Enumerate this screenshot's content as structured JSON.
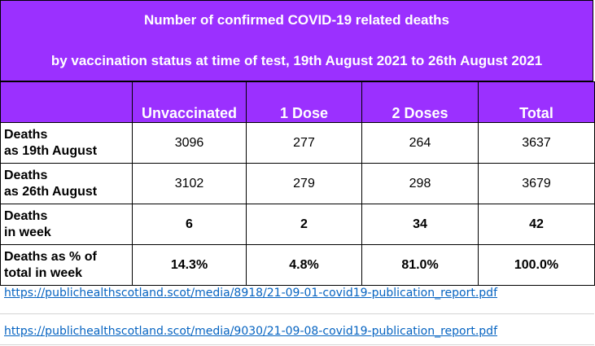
{
  "title": {
    "line1": "Number of confirmed COVID-19 related deaths",
    "line2": "by vaccination status at time of test, 19th August 2021 to 26th August 2021"
  },
  "table": {
    "headers": [
      "",
      "Unvaccinated",
      "1 Dose",
      "2 Doses",
      "Total"
    ],
    "rows": [
      {
        "label1": "Deaths",
        "label2": "as 19th August",
        "values": [
          "3096",
          "277",
          "264",
          "3637"
        ]
      },
      {
        "label1": "Deaths",
        "label2": "as 26th August",
        "values": [
          "3102",
          "279",
          "298",
          "3679"
        ]
      },
      {
        "label1": "Deaths",
        "label2": "in week",
        "values": [
          "6",
          "2",
          "34",
          "42"
        ]
      },
      {
        "label1": "Deaths as % of",
        "label2": "total in week",
        "values": [
          "14.3%",
          "4.8%",
          "81.0%",
          "100.0%"
        ]
      }
    ]
  },
  "links": [
    "https://publichealthscotland.scot/media/8918/21-09-01-covid19-publication_report.pdf",
    "https://publichealthscotland.scot/media/9030/21-09-08-covid19-publication_report.pdf"
  ],
  "colors": {
    "header_bg": "#9b30ff",
    "header_text": "#ffffff",
    "link": "#0563c1"
  }
}
